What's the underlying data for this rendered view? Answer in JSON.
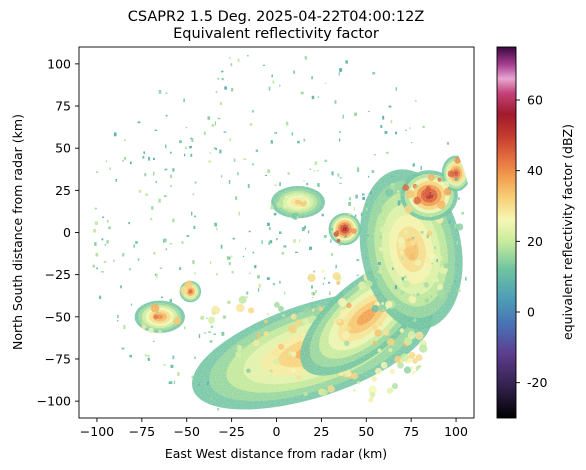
{
  "chart_data": {
    "type": "heatmap",
    "title_line1": "CSAPR2 1.5 Deg. 2025-04-22T04:00:12Z",
    "title_line2": "Equivalent reflectivity factor",
    "xlabel": "East West distance from radar (km)",
    "ylabel": "North South distance from radar (km)",
    "xlim": [
      -110,
      110
    ],
    "ylim": [
      -110,
      110
    ],
    "xticks": [
      -100,
      -75,
      -50,
      -25,
      0,
      25,
      50,
      75,
      100
    ],
    "yticks": [
      -100,
      -75,
      -50,
      -25,
      0,
      25,
      50,
      75,
      100
    ],
    "max_range_km": 110,
    "colorbar": {
      "label": "equivalent reflectivity factor (dBZ)",
      "range": [
        -30,
        75
      ],
      "ticks": [
        -20,
        0,
        20,
        40,
        60
      ],
      "colormap": "pyart_HomeyerRainbow",
      "stops": [
        {
          "v": -30,
          "c": "#000000"
        },
        {
          "v": -22,
          "c": "#2e1e46"
        },
        {
          "v": -12,
          "c": "#5c3c8c"
        },
        {
          "v": -4,
          "c": "#4a6fb4"
        },
        {
          "v": 4,
          "c": "#4d9fb6"
        },
        {
          "v": 12,
          "c": "#6ec3a0"
        },
        {
          "v": 20,
          "c": "#c9ec9c"
        },
        {
          "v": 26,
          "c": "#f5f7b5"
        },
        {
          "v": 32,
          "c": "#f7d27a"
        },
        {
          "v": 38,
          "c": "#f2a04f"
        },
        {
          "v": 44,
          "c": "#e26a3e"
        },
        {
          "v": 50,
          "c": "#c23a2e"
        },
        {
          "v": 56,
          "c": "#a01a2c"
        },
        {
          "v": 62,
          "c": "#c4427a"
        },
        {
          "v": 66,
          "c": "#e6a6cf"
        },
        {
          "v": 70,
          "c": "#a73f90"
        },
        {
          "v": 75,
          "c": "#3a0840"
        }
      ]
    },
    "reflectivity_regions": [
      {
        "name": "southern stratiform band",
        "x": 20,
        "y": -70,
        "rx": 70,
        "ry": 26,
        "rot": -18,
        "dbz": 36
      },
      {
        "name": "southeast band core",
        "x": 50,
        "y": -50,
        "rx": 45,
        "ry": 20,
        "rot": -40,
        "dbz": 38
      },
      {
        "name": "eastern band",
        "x": 75,
        "y": -10,
        "rx": 28,
        "ry": 45,
        "rot": -10,
        "dbz": 34
      },
      {
        "name": "northeast convective cells",
        "x": 85,
        "y": 22,
        "rx": 16,
        "ry": 14,
        "rot": 0,
        "dbz": 52
      },
      {
        "name": "northeast cell 2",
        "x": 100,
        "y": 35,
        "rx": 8,
        "ry": 10,
        "rot": 0,
        "dbz": 48
      },
      {
        "name": "central-east cell",
        "x": 38,
        "y": 2,
        "rx": 9,
        "ry": 9,
        "rot": 0,
        "dbz": 55
      },
      {
        "name": "north-central cells",
        "x": 12,
        "y": 18,
        "rx": 15,
        "ry": 9,
        "rot": 0,
        "dbz": 32
      },
      {
        "name": "southwest cells",
        "x": -65,
        "y": -50,
        "rx": 14,
        "ry": 9,
        "rot": 0,
        "dbz": 40
      },
      {
        "name": "southwest cell 2",
        "x": -48,
        "y": -35,
        "rx": 6,
        "ry": 6,
        "rot": 0,
        "dbz": 46
      }
    ]
  }
}
